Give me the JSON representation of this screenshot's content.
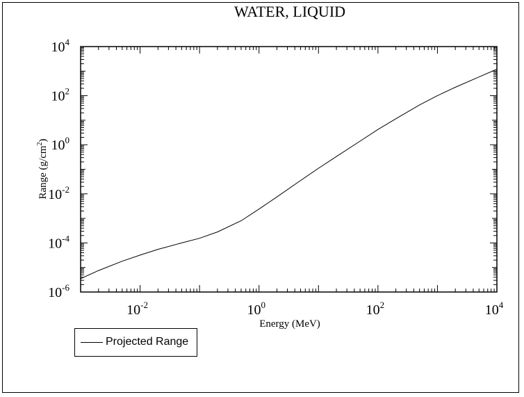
{
  "chart_data": {
    "type": "line",
    "title": "WATER, LIQUID",
    "xlabel": "Energy (MeV)",
    "ylabel": "Range (g/cm",
    "ylabel_sup": "2",
    "ylabel_close": ")",
    "x_scale": "log",
    "y_scale": "log",
    "xlim": [
      0.001,
      10000
    ],
    "ylim": [
      1e-06,
      10000
    ],
    "x_ticks": [
      {
        "base": "10",
        "exp": "-2",
        "value": 0.01
      },
      {
        "base": "10",
        "exp": "0",
        "value": 1
      },
      {
        "base": "10",
        "exp": "2",
        "value": 100
      },
      {
        "base": "10",
        "exp": "4",
        "value": 10000
      }
    ],
    "y_ticks": [
      {
        "base": "10",
        "exp": "-6",
        "value": 1e-06
      },
      {
        "base": "10",
        "exp": "-4",
        "value": 0.0001
      },
      {
        "base": "10",
        "exp": "-2",
        "value": 0.01
      },
      {
        "base": "10",
        "exp": "0",
        "value": 1
      },
      {
        "base": "10",
        "exp": "2",
        "value": 100
      },
      {
        "base": "10",
        "exp": "4",
        "value": 10000
      }
    ],
    "grid": false,
    "legend_position": "bottom-left",
    "series": [
      {
        "name": "Projected Range",
        "color": "#000000",
        "x": [
          0.001,
          0.002,
          0.005,
          0.01,
          0.02,
          0.05,
          0.1,
          0.2,
          0.5,
          1,
          2,
          5,
          10,
          20,
          50,
          100,
          200,
          500,
          1000,
          2000,
          5000,
          10000
        ],
        "y": [
          3.5e-06,
          7.5e-06,
          1.8e-05,
          3.2e-05,
          5.5e-05,
          0.0001,
          0.000155,
          0.00028,
          0.0008,
          0.0024,
          0.0075,
          0.035,
          0.11,
          0.33,
          1.4,
          4.2,
          11.5,
          42,
          100,
          220,
          580,
          1200
        ]
      }
    ]
  }
}
